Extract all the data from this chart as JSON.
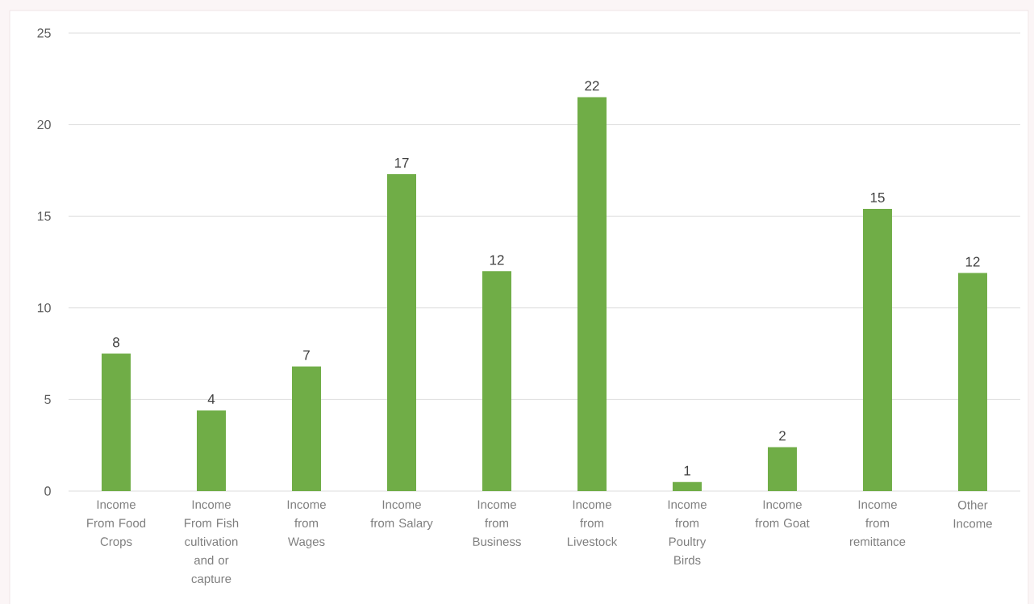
{
  "chart_data": {
    "type": "bar",
    "categories": [
      "Income From Food Crops",
      "Income From Fish cultivation and or capture",
      "Income from Wages",
      "Income from Salary",
      "Income from Business",
      "Income from Livestock",
      "Income from Poultry Birds",
      "Income from Goat",
      "Income from remittance",
      "Other Income"
    ],
    "values": [
      7.5,
      4.4,
      6.8,
      17.3,
      12.0,
      21.5,
      0.5,
      2.4,
      15.4,
      11.9
    ],
    "value_labels": [
      "8",
      "4",
      "7",
      "17",
      "12",
      "22",
      "1",
      "2",
      "15",
      "12"
    ],
    "color": "#70ad47",
    "ylim": [
      0,
      25
    ],
    "yticks": [
      0,
      5,
      10,
      15,
      20,
      25
    ],
    "grid": "y"
  }
}
